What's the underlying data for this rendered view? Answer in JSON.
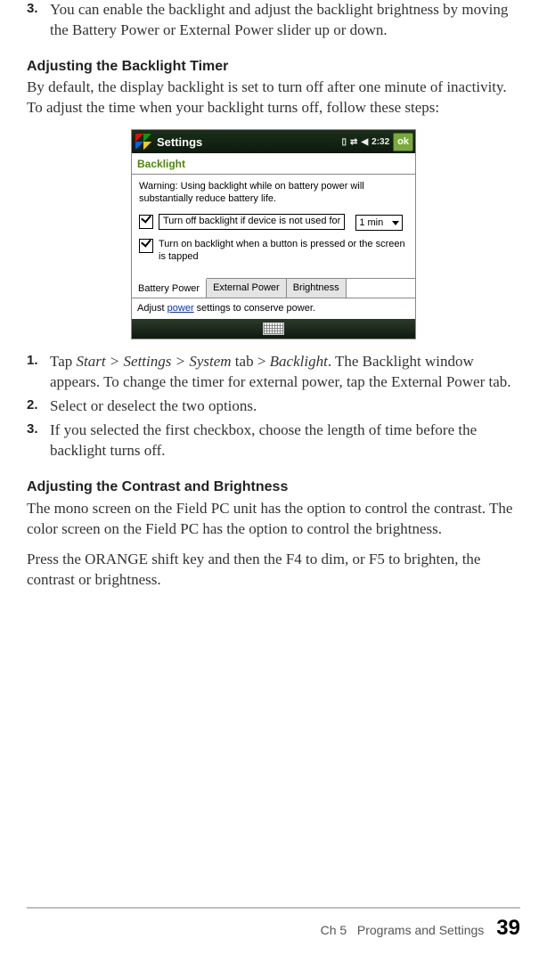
{
  "pre_step": {
    "num": "3.",
    "text": "You can enable the backlight and adjust the backlight brightness by moving the Battery Power or External Power slider up or down."
  },
  "section1": {
    "heading": "Adjusting the Backlight Timer",
    "intro": "By default, the display backlight is set to turn off after one minute of inactivity. To adjust the time when your backlight turns off, follow these steps:"
  },
  "screenshot": {
    "title": "Settings",
    "time": "2:32",
    "ok": "ok",
    "subhead": "Backlight",
    "warning": "Warning: Using backlight while on battery power will substantially reduce battery life.",
    "opt1": "Turn off backlight if device is not used for",
    "opt1_value": "1 min",
    "opt2": "Turn on backlight when a button is pressed or the screen is tapped",
    "tabs": [
      "Battery Power",
      "External Power",
      "Brightness"
    ],
    "hint_pre": "Adjust ",
    "hint_link": "power",
    "hint_post": " settings to conserve power."
  },
  "steps": [
    {
      "num": "1.",
      "pre": "Tap ",
      "italic1": "Start > Settings > System",
      "mid": " tab > ",
      "italic2": "Backlight",
      "post": ". The Backlight window appears. To change the timer for external power, tap the External Power tab."
    },
    {
      "num": "2.",
      "text": "Select or deselect the two options."
    },
    {
      "num": "3.",
      "text": "If you selected the first checkbox, choose the length of time before the backlight turns off."
    }
  ],
  "section2": {
    "heading": "Adjusting the Contrast and Brightness",
    "p1": "The mono screen on the Field PC unit has the option to control the contrast. The color screen on the Field PC has the option to control the brightness.",
    "p2": "Press the ORANGE shift key and then the F4 to dim, or F5 to brighten, the contrast or brightness."
  },
  "footer": {
    "chapter": "Ch 5",
    "title": "Programs and Settings",
    "page": "39"
  }
}
